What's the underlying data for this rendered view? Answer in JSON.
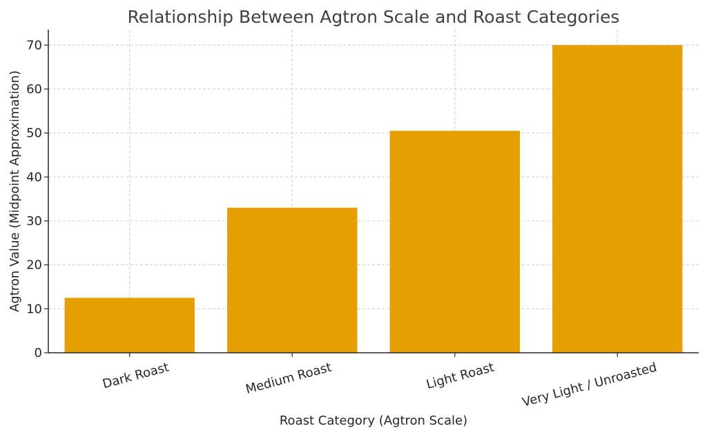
{
  "chart_data": {
    "type": "bar",
    "title": "Relationship Between Agtron Scale and Roast Categories",
    "xlabel": "Roast Category (Agtron Scale)",
    "ylabel": "Agtron Value (Midpoint Approximation)",
    "categories": [
      "Dark Roast",
      "Medium Roast",
      "Light Roast",
      "Very Light / Unroasted"
    ],
    "values": [
      12.5,
      33,
      50.5,
      70
    ],
    "ylim": [
      0,
      73.5
    ],
    "yticks": [
      0,
      10,
      20,
      30,
      40,
      50,
      60,
      70
    ],
    "grid": true,
    "bar_color": "#e69f00",
    "xtick_rotation_deg": -15
  }
}
